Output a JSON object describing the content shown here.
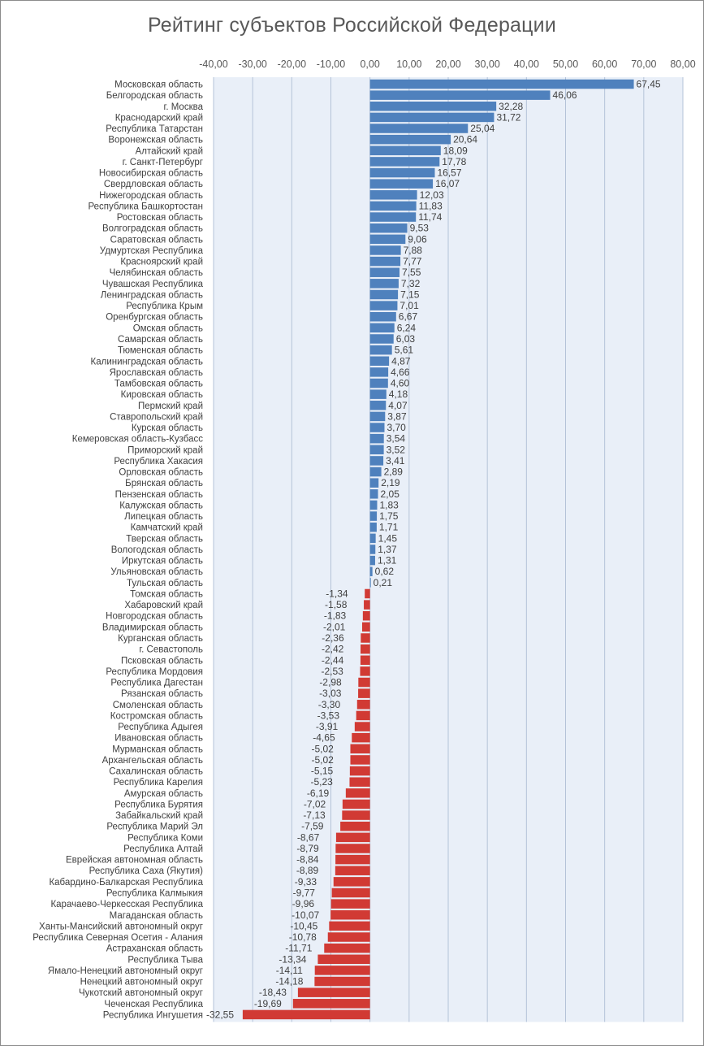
{
  "chart_data": {
    "type": "bar",
    "orientation": "horizontal",
    "title": "Рейтинг субъектов Российской Федерации",
    "xlabel": "",
    "ylabel": "",
    "xlim": [
      -40,
      80
    ],
    "x_ticks": [
      "-40,00",
      "-30,00",
      "-20,00",
      "-10,00",
      "0,00",
      "10,00",
      "20,00",
      "30,00",
      "40,00",
      "50,00",
      "60,00",
      "70,00",
      "80,00"
    ],
    "grid": true,
    "legend": "none",
    "colors": {
      "positive": "#4f81bd",
      "negative": "#d13a34",
      "plot_bg": "#e9eff8",
      "grid": "#b4c3d8"
    },
    "categories": [
      "Московская область",
      "Белгородская область",
      "г. Москва",
      "Краснодарский край",
      "Республика Татарстан",
      "Воронежская область",
      "Алтайский край",
      "г. Санкт-Петербург",
      "Новосибирская область",
      "Свердловская область",
      "Нижегородская область",
      "Республика Башкортостан",
      "Ростовская область",
      "Волгоградская область",
      "Саратовская область",
      "Удмуртская Республика",
      "Красноярский край",
      "Челябинская область",
      "Чувашская Республика",
      "Ленинградская область",
      "Республика Крым",
      "Оренбургская область",
      "Омская область",
      "Самарская область",
      "Тюменская область",
      "Калининградская область",
      "Ярославская область",
      "Тамбовская область",
      "Кировская область",
      "Пермский край",
      "Ставропольский край",
      "Курская область",
      "Кемеровская область-Кузбасс",
      "Приморский край",
      "Республика Хакасия",
      "Орловская область",
      "Брянская область",
      "Пензенская область",
      "Калужская область",
      "Липецкая область",
      "Камчатский край",
      "Тверская область",
      "Вологодская область",
      "Иркутская область",
      "Ульяновская область",
      "Тульская область",
      "Томская область",
      "Хабаровский край",
      "Новгородская область",
      "Владимирская область",
      "Курганская область",
      "г. Севастополь",
      "Псковская область",
      "Республика Мордовия",
      "Республика Дагестан",
      "Рязанская область",
      "Смоленская область",
      "Костромская область",
      "Республика Адыгея",
      "Ивановская область",
      "Мурманская область",
      "Архангельская область",
      "Сахалинская область",
      "Республика Карелия",
      "Амурская область",
      "Республика Бурятия",
      "Забайкальский край",
      "Республика Марий Эл",
      "Республика Коми",
      "Республика Алтай",
      "Еврейская автономная область",
      "Республика Саха (Якутия)",
      "Кабардино-Балкарская Республика",
      "Республика Калмыкия",
      "Карачаево-Черкесская Республика",
      "Магаданская область",
      "Ханты-Мансийский автономный округ",
      "Республика Северная Осетия - Алания",
      "Астраханская область",
      "Республика Тыва",
      "Ямало-Ненецкий автономный округ",
      "Ненецкий автономный округ",
      "Чукотский автономный округ",
      "Чеченская Республика",
      "Республика Ингушетия"
    ],
    "values": [
      67.45,
      46.06,
      32.28,
      31.72,
      25.04,
      20.64,
      18.09,
      17.78,
      16.57,
      16.07,
      12.03,
      11.83,
      11.74,
      9.53,
      9.06,
      7.88,
      7.77,
      7.55,
      7.32,
      7.15,
      7.01,
      6.67,
      6.24,
      6.03,
      5.61,
      4.87,
      4.66,
      4.6,
      4.18,
      4.07,
      3.87,
      3.7,
      3.54,
      3.52,
      3.41,
      2.89,
      2.19,
      2.05,
      1.83,
      1.75,
      1.71,
      1.45,
      1.37,
      1.31,
      0.62,
      0.21,
      -1.34,
      -1.58,
      -1.83,
      -2.01,
      -2.36,
      -2.42,
      -2.44,
      -2.53,
      -2.98,
      -3.03,
      -3.3,
      -3.53,
      -3.91,
      -4.65,
      -5.02,
      -5.02,
      -5.15,
      -5.23,
      -6.19,
      -7.02,
      -7.13,
      -7.59,
      -8.67,
      -8.79,
      -8.84,
      -8.89,
      -9.33,
      -9.77,
      -9.96,
      -10.07,
      -10.45,
      -10.78,
      -11.71,
      -13.34,
      -14.11,
      -14.18,
      -18.43,
      -19.69,
      -32.55
    ],
    "value_labels": [
      "67,45",
      "46,06",
      "32,28",
      "31,72",
      "25,04",
      "20,64",
      "18,09",
      "17,78",
      "16,57",
      "16,07",
      "12,03",
      "11,83",
      "11,74",
      "9,53",
      "9,06",
      "7,88",
      "7,77",
      "7,55",
      "7,32",
      "7,15",
      "7,01",
      "6,67",
      "6,24",
      "6,03",
      "5,61",
      "4,87",
      "4,66",
      "4,60",
      "4,18",
      "4,07",
      "3,87",
      "3,70",
      "3,54",
      "3,52",
      "3,41",
      "2,89",
      "2,19",
      "2,05",
      "1,83",
      "1,75",
      "1,71",
      "1,45",
      "1,37",
      "1,31",
      "0,62",
      "0,21",
      "-1,34",
      "-1,58",
      "-1,83",
      "-2,01",
      "-2,36",
      "-2,42",
      "-2,44",
      "-2,53",
      "-2,98",
      "-3,03",
      "-3,30",
      "-3,53",
      "-3,91",
      "-4,65",
      "-5,02",
      "-5,02",
      "-5,15",
      "-5,23",
      "-6,19",
      "-7,02",
      "-7,13",
      "-7,59",
      "-8,67",
      "-8,79",
      "-8,84",
      "-8,89",
      "-9,33",
      "-9,77",
      "-9,96",
      "-10,07",
      "-10,45",
      "-10,78",
      "-11,71",
      "-13,34",
      "-14,11",
      "-14,18",
      "-18,43",
      "-19,69",
      "-32,55"
    ]
  }
}
